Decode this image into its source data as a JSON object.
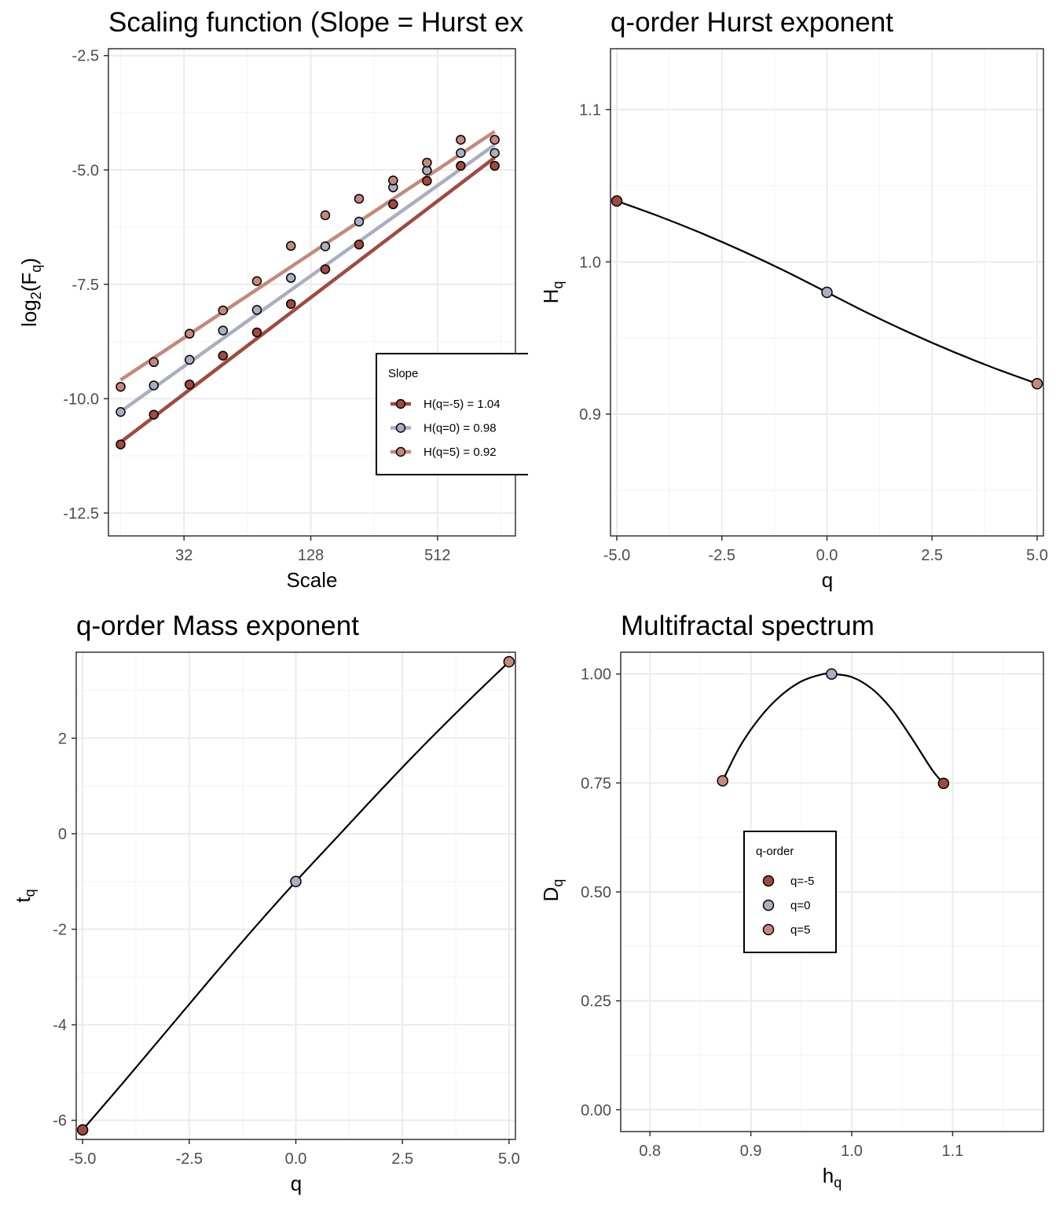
{
  "colors": {
    "q_neg5": "#a04a3e",
    "q_0": "#a9afc0",
    "q_5": "#c4897b",
    "grid_major": "#ebebeb",
    "grid_minor": "#f5f5f5",
    "panel_border": "#333333",
    "curve": "#000000"
  },
  "chart_data": [
    {
      "type": "scatter",
      "title": "Scaling function (Slope = Hurst exponent)",
      "title_visible": "Scaling function (Slope = Hurst ex",
      "xlabel": "Scale",
      "ylabel": "log2(Fq)",
      "x_scale": "log2",
      "x_ticks": [
        32,
        128,
        512
      ],
      "x_tick_labels": [
        "32",
        "128",
        "512"
      ],
      "xlim": [
        14,
        1200
      ],
      "y_ticks": [
        -2.5,
        -5.0,
        -7.5,
        -10.0,
        -12.5
      ],
      "y_tick_labels": [
        "-2.5",
        "-5.0",
        "-7.5",
        "-10.0",
        "-12.5"
      ],
      "ylim": [
        -13.0,
        -2.35
      ],
      "grid": true,
      "legend": {
        "title": "Slope",
        "placement": "right",
        "entries": [
          "H(q=-5) = 1.04",
          "H(q=0) = 0.98",
          "H(q=5) = 0.92"
        ]
      },
      "x": [
        16,
        23,
        34,
        49,
        71,
        103,
        150,
        217,
        315,
        456,
        660,
        957
      ],
      "series": [
        {
          "name": "H(q=-5) = 1.04",
          "color_key": "q_neg5",
          "y": [
            -11.0,
            -10.35,
            -9.69,
            -9.06,
            -8.55,
            -7.93,
            -7.17,
            -6.63,
            -5.75,
            -5.24,
            -4.91,
            -4.91
          ],
          "fit": [
            -10.95,
            -4.73
          ]
        },
        {
          "name": "H(q=0) = 0.98",
          "color_key": "q_0",
          "y": [
            -10.29,
            -9.71,
            -9.15,
            -8.51,
            -8.06,
            -7.36,
            -6.67,
            -6.13,
            -5.38,
            -5.01,
            -4.63,
            -4.63
          ],
          "fit": [
            -10.28,
            -4.45
          ]
        },
        {
          "name": "H(q=5) = 0.92",
          "color_key": "q_5",
          "y": [
            -9.74,
            -9.2,
            -8.58,
            -8.07,
            -7.43,
            -6.66,
            -5.99,
            -5.63,
            -5.23,
            -4.84,
            -4.34,
            -4.34
          ],
          "fit": [
            -9.59,
            -4.16
          ]
        }
      ]
    },
    {
      "type": "line",
      "title": "q-order Hurst exponent",
      "xlabel": "q",
      "ylabel": "Hq",
      "x_ticks": [
        -5.0,
        -2.5,
        0.0,
        2.5,
        5.0
      ],
      "x_tick_labels": [
        "-5.0",
        "-2.5",
        "0.0",
        "2.5",
        "5.0"
      ],
      "xlim": [
        -5.15,
        5.15
      ],
      "y_ticks": [
        0.9,
        1.0,
        1.1
      ],
      "y_tick_labels": [
        "0.9",
        "1.0",
        "1.1"
      ],
      "ylim": [
        0.82,
        1.14
      ],
      "grid": true,
      "curve": {
        "x": [
          -5,
          -4,
          -3,
          -2,
          -1,
          0,
          1,
          2,
          3,
          4,
          5
        ],
        "y": [
          1.04,
          1.03,
          1.019,
          1.007,
          0.994,
          0.98,
          0.966,
          0.953,
          0.941,
          0.93,
          0.92
        ]
      },
      "points": [
        {
          "q": -5,
          "value": 1.04,
          "color_key": "q_neg5"
        },
        {
          "q": 0,
          "value": 0.98,
          "color_key": "q_0"
        },
        {
          "q": 5,
          "value": 0.92,
          "color_key": "q_5"
        }
      ]
    },
    {
      "type": "line",
      "title": "q-order Mass exponent",
      "xlabel": "q",
      "ylabel": "tq",
      "x_ticks": [
        -5.0,
        -2.5,
        0.0,
        2.5,
        5.0
      ],
      "x_tick_labels": [
        "-5.0",
        "-2.5",
        "0.0",
        "2.5",
        "5.0"
      ],
      "xlim": [
        -5.15,
        5.15
      ],
      "y_ticks": [
        -6,
        -4,
        -2,
        0,
        2
      ],
      "y_tick_labels": [
        "-6",
        "-4",
        "-2",
        "0",
        "2"
      ],
      "ylim": [
        -6.4,
        3.8
      ],
      "grid": true,
      "curve": {
        "x": [
          -5,
          -4,
          -3,
          -2,
          -1,
          0,
          1,
          2,
          3,
          4,
          5
        ],
        "y": [
          -6.2,
          -5.16,
          -4.1,
          -3.04,
          -2.0,
          -1.0,
          -0.04,
          0.92,
          1.85,
          2.74,
          3.6
        ]
      },
      "points": [
        {
          "q": -5,
          "value": -6.2,
          "color_key": "q_neg5"
        },
        {
          "q": 0,
          "value": -1.0,
          "color_key": "q_0"
        },
        {
          "q": 5,
          "value": 3.6,
          "color_key": "q_5"
        }
      ]
    },
    {
      "type": "line",
      "title": "Multifractal spectrum",
      "xlabel": "hq",
      "ylabel": "Dq",
      "x_ticks": [
        0.8,
        0.9,
        1.0,
        1.1
      ],
      "x_tick_labels": [
        "0.8",
        "0.9",
        "1.0",
        "1.1"
      ],
      "xlim": [
        0.771,
        1.19
      ],
      "y_ticks": [
        0.0,
        0.25,
        0.5,
        0.75,
        1.0
      ],
      "y_tick_labels": [
        "0.00",
        "0.25",
        "0.50",
        "0.75",
        "1.00"
      ],
      "ylim": [
        -0.05,
        1.05
      ],
      "grid": true,
      "legend": {
        "title": "q-order",
        "placement": "center",
        "entries": [
          "q=-5",
          "q=0",
          "q=5"
        ]
      },
      "curve": {
        "x": [
          0.872,
          0.89,
          0.91,
          0.93,
          0.95,
          0.97,
          0.98,
          1.0,
          1.02,
          1.04,
          1.06,
          1.08,
          1.091
        ],
        "y": [
          0.755,
          0.837,
          0.903,
          0.951,
          0.983,
          0.999,
          1.0,
          0.993,
          0.966,
          0.918,
          0.851,
          0.779,
          0.749
        ]
      },
      "points": [
        {
          "label": "q=-5",
          "h": 1.091,
          "D": 0.749,
          "color_key": "q_neg5"
        },
        {
          "label": "q=0",
          "h": 0.98,
          "D": 1.0,
          "color_key": "q_0"
        },
        {
          "label": "q=5",
          "h": 0.872,
          "D": 0.755,
          "color_key": "q_5"
        }
      ]
    }
  ]
}
